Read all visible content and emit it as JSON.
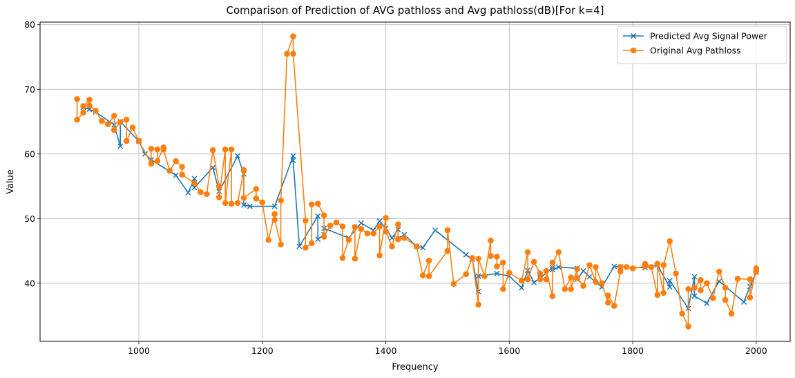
{
  "chart_data": {
    "type": "line",
    "title": "Comparison of Prediction of AVG pathloss and Avg pathloss(dB)[For k=4]",
    "xlabel": "Frequency",
    "ylabel": "Value",
    "xlim": [
      840,
      2055
    ],
    "ylim": [
      31,
      80.4
    ],
    "xticks": [
      1000,
      1200,
      1400,
      1600,
      1800,
      2000
    ],
    "yticks": [
      40,
      50,
      60,
      70,
      80
    ],
    "grid": true,
    "legend_position": "top-right",
    "series": [
      {
        "name": "Predicted Avg Signal Power",
        "color": "#1f77b4",
        "marker": "x",
        "points": [
          [
            910,
            67.2
          ],
          [
            920,
            66.9
          ],
          [
            930,
            66.5
          ],
          [
            960,
            64.5
          ],
          [
            970,
            61.2
          ],
          [
            970,
            65.0
          ],
          [
            1000,
            62.0
          ],
          [
            1010,
            60.0
          ],
          [
            1020,
            59.1
          ],
          [
            1060,
            56.7
          ],
          [
            1080,
            54.0
          ],
          [
            1090,
            56.2
          ],
          [
            1090,
            54.8
          ],
          [
            1120,
            57.9
          ],
          [
            1130,
            54.2
          ],
          [
            1160,
            59.7
          ],
          [
            1170,
            56.9
          ],
          [
            1170,
            52.1
          ],
          [
            1180,
            51.9
          ],
          [
            1220,
            51.9
          ],
          [
            1250,
            59.7
          ],
          [
            1250,
            59.0
          ],
          [
            1260,
            45.7
          ],
          [
            1290,
            50.4
          ],
          [
            1290,
            46.8
          ],
          [
            1300,
            47.5
          ],
          [
            1300,
            48.5
          ],
          [
            1340,
            47.0
          ],
          [
            1360,
            49.3
          ],
          [
            1380,
            48.2
          ],
          [
            1390,
            49.6
          ],
          [
            1400,
            48.5
          ],
          [
            1410,
            47.0
          ],
          [
            1420,
            48.3
          ],
          [
            1420,
            46.9
          ],
          [
            1430,
            47.5
          ],
          [
            1450,
            45.7
          ],
          [
            1460,
            45.5
          ],
          [
            1480,
            48.2
          ],
          [
            1530,
            44.4
          ],
          [
            1540,
            43.7
          ],
          [
            1550,
            38.7
          ],
          [
            1550,
            41.1
          ],
          [
            1580,
            41.5
          ],
          [
            1600,
            41.1
          ],
          [
            1620,
            39.3
          ],
          [
            1630,
            42.0
          ],
          [
            1640,
            40.1
          ],
          [
            1650,
            40.8
          ],
          [
            1670,
            42.4
          ],
          [
            1670,
            42.1
          ],
          [
            1680,
            42.5
          ],
          [
            1710,
            42.3
          ],
          [
            1710,
            40.6
          ],
          [
            1720,
            41.9
          ],
          [
            1730,
            41.0
          ],
          [
            1750,
            39.4
          ],
          [
            1770,
            42.6
          ],
          [
            1780,
            42.5
          ],
          [
            1820,
            42.4
          ],
          [
            1840,
            42.8
          ],
          [
            1860,
            39.4
          ],
          [
            1860,
            40.4
          ],
          [
            1890,
            36.1
          ],
          [
            1900,
            41.0
          ],
          [
            1900,
            38.0
          ],
          [
            1920,
            36.9
          ],
          [
            1940,
            40.3
          ],
          [
            1980,
            37.1
          ],
          [
            1990,
            39.5
          ],
          [
            2000,
            41.7
          ]
        ]
      },
      {
        "name": "Original Avg Pathloss",
        "color": "#ff7f0e",
        "marker": "o",
        "points": [
          [
            900,
            68.5
          ],
          [
            900,
            65.3
          ],
          [
            910,
            66.4
          ],
          [
            910,
            67.4
          ],
          [
            920,
            68.4
          ],
          [
            920,
            67.5
          ],
          [
            930,
            66.7
          ],
          [
            940,
            65.1
          ],
          [
            950,
            64.6
          ],
          [
            960,
            65.9
          ],
          [
            960,
            63.7
          ],
          [
            970,
            64.9
          ],
          [
            980,
            65.3
          ],
          [
            980,
            62.0
          ],
          [
            990,
            64.1
          ],
          [
            1000,
            62.0
          ],
          [
            1020,
            58.5
          ],
          [
            1020,
            60.8
          ],
          [
            1030,
            60.7
          ],
          [
            1030,
            58.9
          ],
          [
            1040,
            61.0
          ],
          [
            1040,
            60.7
          ],
          [
            1050,
            57.4
          ],
          [
            1060,
            58.9
          ],
          [
            1070,
            58.0
          ],
          [
            1070,
            56.8
          ],
          [
            1090,
            55.5
          ],
          [
            1100,
            54.1
          ],
          [
            1110,
            53.8
          ],
          [
            1120,
            60.6
          ],
          [
            1130,
            55.0
          ],
          [
            1130,
            53.3
          ],
          [
            1140,
            60.7
          ],
          [
            1140,
            52.4
          ],
          [
            1150,
            60.7
          ],
          [
            1150,
            52.3
          ],
          [
            1160,
            52.4
          ],
          [
            1170,
            57.5
          ],
          [
            1170,
            53.2
          ],
          [
            1190,
            54.6
          ],
          [
            1190,
            53.1
          ],
          [
            1200,
            52.5
          ],
          [
            1210,
            46.7
          ],
          [
            1220,
            50.7
          ],
          [
            1220,
            49.8
          ],
          [
            1230,
            46.0
          ],
          [
            1230,
            52.8
          ],
          [
            1240,
            75.5
          ],
          [
            1250,
            78.2
          ],
          [
            1250,
            75.5
          ],
          [
            1270,
            49.7
          ],
          [
            1270,
            45.5
          ],
          [
            1280,
            46.2
          ],
          [
            1280,
            52.2
          ],
          [
            1290,
            52.3
          ],
          [
            1300,
            50.5
          ],
          [
            1300,
            47.2
          ],
          [
            1310,
            48.9
          ],
          [
            1320,
            49.4
          ],
          [
            1330,
            48.8
          ],
          [
            1330,
            43.9
          ],
          [
            1340,
            46.7
          ],
          [
            1350,
            48.7
          ],
          [
            1350,
            43.8
          ],
          [
            1360,
            48.4
          ],
          [
            1370,
            47.7
          ],
          [
            1380,
            47.7
          ],
          [
            1390,
            48.8
          ],
          [
            1390,
            44.3
          ],
          [
            1400,
            50.1
          ],
          [
            1400,
            48.0
          ],
          [
            1410,
            45.7
          ],
          [
            1420,
            49.1
          ],
          [
            1420,
            46.8
          ],
          [
            1430,
            47.0
          ],
          [
            1450,
            45.7
          ],
          [
            1460,
            41.2
          ],
          [
            1470,
            43.5
          ],
          [
            1470,
            41.1
          ],
          [
            1500,
            45.0
          ],
          [
            1500,
            48.2
          ],
          [
            1510,
            39.9
          ],
          [
            1530,
            41.4
          ],
          [
            1540,
            43.9
          ],
          [
            1550,
            36.7
          ],
          [
            1550,
            43.8
          ],
          [
            1560,
            41.1
          ],
          [
            1570,
            46.6
          ],
          [
            1570,
            44.2
          ],
          [
            1580,
            44.1
          ],
          [
            1580,
            42.6
          ],
          [
            1590,
            43.2
          ],
          [
            1590,
            39.1
          ],
          [
            1600,
            41.6
          ],
          [
            1620,
            40.4
          ],
          [
            1630,
            44.8
          ],
          [
            1630,
            40.6
          ],
          [
            1640,
            43.3
          ],
          [
            1650,
            41.5
          ],
          [
            1650,
            40.6
          ],
          [
            1660,
            40.6
          ],
          [
            1660,
            41.9
          ],
          [
            1670,
            38.0
          ],
          [
            1670,
            43.2
          ],
          [
            1680,
            44.8
          ],
          [
            1690,
            39.1
          ],
          [
            1700,
            40.9
          ],
          [
            1700,
            39.1
          ],
          [
            1710,
            42.2
          ],
          [
            1710,
            40.8
          ],
          [
            1720,
            39.6
          ],
          [
            1730,
            42.8
          ],
          [
            1740,
            40.2
          ],
          [
            1740,
            42.5
          ],
          [
            1750,
            40.0
          ],
          [
            1760,
            37.0
          ],
          [
            1760,
            38.1
          ],
          [
            1770,
            36.5
          ],
          [
            1780,
            41.8
          ],
          [
            1780,
            42.5
          ],
          [
            1790,
            42.5
          ],
          [
            1800,
            42.3
          ],
          [
            1820,
            42.6
          ],
          [
            1820,
            43.0
          ],
          [
            1830,
            42.5
          ],
          [
            1840,
            38.2
          ],
          [
            1840,
            43.0
          ],
          [
            1850,
            38.5
          ],
          [
            1850,
            42.8
          ],
          [
            1860,
            46.5
          ],
          [
            1870,
            41.5
          ],
          [
            1880,
            35.3
          ],
          [
            1890,
            33.3
          ],
          [
            1890,
            39.1
          ],
          [
            1900,
            39.3
          ],
          [
            1910,
            40.5
          ],
          [
            1910,
            38.9
          ],
          [
            1920,
            40.0
          ],
          [
            1930,
            37.7
          ],
          [
            1940,
            41.8
          ],
          [
            1950,
            39.3
          ],
          [
            1950,
            37.4
          ],
          [
            1960,
            35.3
          ],
          [
            1970,
            40.7
          ],
          [
            1990,
            40.6
          ],
          [
            1990,
            37.8
          ],
          [
            2000,
            42.3
          ],
          [
            2000,
            41.8
          ]
        ]
      }
    ]
  }
}
